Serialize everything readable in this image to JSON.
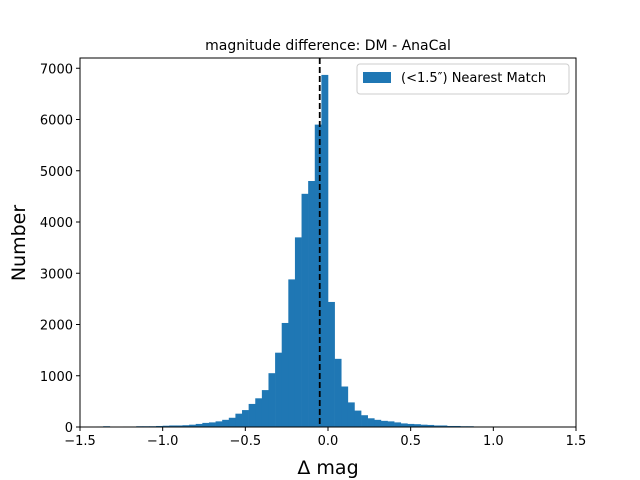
{
  "chart_data": {
    "type": "bar",
    "title": "magnitude difference: DM - AnaCal",
    "xlabel": "Δ mag",
    "ylabel": "Number",
    "xlim": [
      -1.5,
      1.5
    ],
    "ylim": [
      0,
      7200
    ],
    "x_ticks": [
      -1.5,
      -1.0,
      -0.5,
      0.0,
      0.5,
      1.0,
      1.5
    ],
    "x_tick_labels": [
      "−1.5",
      "−1.0",
      "−0.5",
      "0.0",
      "0.5",
      "1.0",
      "1.5"
    ],
    "y_ticks": [
      0,
      1000,
      2000,
      3000,
      4000,
      5000,
      6000,
      7000
    ],
    "y_tick_labels": [
      "0",
      "1000",
      "2000",
      "3000",
      "4000",
      "5000",
      "6000",
      "7000"
    ],
    "grid": false,
    "legend_position": "upper right",
    "series": [
      {
        "name": "(<1.5″) Nearest Match",
        "color": "#1f77b4",
        "bin_edges": [
          -1.4,
          -1.36,
          -1.32,
          -1.28,
          -1.24,
          -1.2,
          -1.16,
          -1.12,
          -1.08,
          -1.04,
          -1.0,
          -0.96,
          -0.92,
          -0.88,
          -0.84,
          -0.8,
          -0.76,
          -0.72,
          -0.68,
          -0.64,
          -0.6,
          -0.56,
          -0.52,
          -0.48,
          -0.44,
          -0.4,
          -0.36,
          -0.32,
          -0.28,
          -0.24,
          -0.2,
          -0.16,
          -0.12,
          -0.08,
          -0.04,
          0.0,
          0.04,
          0.08,
          0.12,
          0.16,
          0.2,
          0.24,
          0.28,
          0.32,
          0.36,
          0.4,
          0.44,
          0.48,
          0.52,
          0.56,
          0.6,
          0.64,
          0.68,
          0.72,
          0.76,
          0.8,
          0.84,
          0.88,
          0.92,
          0.96,
          1.0,
          1.04,
          1.08,
          1.12,
          1.16,
          1.2,
          1.24,
          1.28,
          1.32,
          1.36
        ],
        "counts": [
          10,
          15,
          5,
          5,
          10,
          10,
          15,
          15,
          15,
          20,
          25,
          30,
          30,
          35,
          45,
          60,
          80,
          90,
          110,
          140,
          180,
          260,
          330,
          450,
          560,
          720,
          1050,
          1450,
          2030,
          2880,
          3700,
          4550,
          4800,
          5900,
          6870,
          2440,
          1330,
          790,
          480,
          320,
          230,
          170,
          140,
          120,
          110,
          90,
          70,
          60,
          55,
          45,
          40,
          30,
          30,
          20,
          20,
          15,
          15,
          10,
          10,
          10,
          10,
          5,
          5,
          5,
          5,
          5,
          5,
          5,
          5
        ]
      }
    ],
    "reference_line": {
      "x": -0.05,
      "style": "dashed",
      "color": "#000000"
    }
  }
}
